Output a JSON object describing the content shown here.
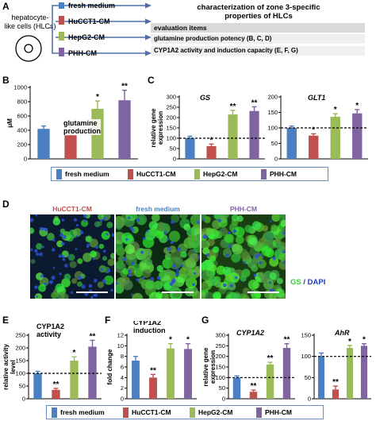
{
  "colors": {
    "fresh": "#4a7fc1",
    "huCCT1": "#c0504d",
    "hepg2": "#9bbb59",
    "phh": "#8064a2",
    "arrow": "#4f6fa8",
    "gs": "#3ccf3c",
    "dapi": "#1f3fb0"
  },
  "legend": {
    "fresh": "fresh medium",
    "huCCT1": "HuCCT1-CM",
    "hepg2": "HepG2-CM",
    "phh": "PHH-CM"
  },
  "panelA": {
    "label": "A",
    "source_line1": "hepatocyte-",
    "source_line2": "like cells (HLCs)",
    "arrows": [
      "fresh medium",
      "HuCCT1-CM",
      "HepG2-CM",
      "PHH-CM"
    ],
    "title_line1": "characterization of zone 3-specific",
    "title_line2": "properties of HLCs",
    "table_header": "evaluation items",
    "table_rows": [
      "glutamine production potency (B, C, D)",
      "CYP1A2 activity and induction capacity (E, F, G)"
    ]
  },
  "panelB": {
    "label": "B",
    "annotation_line1": "glutamine",
    "annotation_line2": "production"
  },
  "panelC": {
    "label": "C"
  },
  "panelD": {
    "label": "D",
    "titles": [
      "HuCCT1-CM",
      "fresh medium",
      "PHH-CM"
    ],
    "stain_gs": "GS",
    "stain_sep": " / ",
    "stain_dapi": "DAPI"
  },
  "panelE": {
    "label": "E"
  },
  "panelF": {
    "label": "F"
  },
  "panelG": {
    "label": "G"
  },
  "chart_data": [
    {
      "id": "B",
      "type": "bar",
      "categories": [
        "fresh medium",
        "HuCCT1-CM",
        "HepG2-CM",
        "PHH-CM"
      ],
      "values": [
        420,
        330,
        700,
        820
      ],
      "errors": [
        40,
        40,
        110,
        140
      ],
      "sig": [
        "",
        "*",
        "*",
        "**"
      ],
      "ylabel": "μM",
      "ylim": [
        0,
        1000
      ],
      "yticks": [
        0,
        200,
        400,
        600,
        800,
        1000
      ],
      "title": "",
      "baseline": null
    },
    {
      "id": "C1",
      "type": "bar",
      "categories": [
        "fresh medium",
        "HuCCT1-CM",
        "HepG2-CM",
        "PHH-CM"
      ],
      "values": [
        100,
        62,
        215,
        232
      ],
      "errors": [
        10,
        10,
        20,
        20
      ],
      "sig": [
        "",
        "*",
        "**",
        "**"
      ],
      "ylabel": "relative gene expression",
      "ylim": [
        0,
        300
      ],
      "yticks": [
        0,
        50,
        100,
        150,
        200,
        250,
        300
      ],
      "title": "GS",
      "baseline": 100
    },
    {
      "id": "C2",
      "type": "bar",
      "categories": [
        "fresh medium",
        "HuCCT1-CM",
        "HepG2-CM",
        "PHH-CM"
      ],
      "values": [
        100,
        75,
        136,
        147
      ],
      "errors": [
        6,
        6,
        10,
        12
      ],
      "sig": [
        "",
        "*",
        "*",
        "*"
      ],
      "ylabel": "",
      "ylim": [
        0,
        200
      ],
      "yticks": [
        0,
        50,
        100,
        150,
        200
      ],
      "title": "GLT1",
      "baseline": 100
    },
    {
      "id": "E",
      "type": "bar",
      "categories": [
        "fresh medium",
        "HuCCT1-CM",
        "HepG2-CM",
        "PHH-CM"
      ],
      "values": [
        100,
        35,
        150,
        205
      ],
      "errors": [
        8,
        6,
        15,
        25
      ],
      "sig": [
        "",
        "**",
        "*",
        "**"
      ],
      "ylabel": "relative activity level",
      "ylim": [
        0,
        250
      ],
      "yticks": [
        0,
        50,
        100,
        150,
        200,
        250
      ],
      "title": "CYP1A2 activity",
      "baseline": 100
    },
    {
      "id": "F",
      "type": "bar",
      "categories": [
        "fresh medium",
        "HuCCT1-CM",
        "HepG2-CM",
        "PHH-CM"
      ],
      "values": [
        7.2,
        4.0,
        9.5,
        9.4
      ],
      "errors": [
        0.8,
        0.6,
        0.9,
        1.0
      ],
      "sig": [
        "",
        "**",
        "*",
        "*"
      ],
      "ylabel": "fold change",
      "ylim": [
        0,
        12
      ],
      "yticks": [
        0,
        2,
        4,
        6,
        8,
        10,
        12
      ],
      "title": "CYP1A2 induction",
      "baseline": null
    },
    {
      "id": "G1",
      "type": "bar",
      "categories": [
        "fresh medium",
        "HuCCT1-CM",
        "HepG2-CM",
        "PHH-CM"
      ],
      "values": [
        100,
        33,
        162,
        240
      ],
      "errors": [
        8,
        8,
        10,
        20
      ],
      "sig": [
        "",
        "**",
        "**",
        "**"
      ],
      "ylabel": "relative gene expression",
      "ylim": [
        0,
        300
      ],
      "yticks": [
        0,
        50,
        100,
        150,
        200,
        250,
        300
      ],
      "title": "CYP1A2",
      "baseline": 100
    },
    {
      "id": "G2",
      "type": "bar",
      "categories": [
        "fresh medium",
        "HuCCT1-CM",
        "HepG2-CM",
        "PHH-CM"
      ],
      "values": [
        100,
        22,
        120,
        125
      ],
      "errors": [
        8,
        8,
        6,
        5
      ],
      "sig": [
        "",
        "**",
        "*",
        "*"
      ],
      "ylabel": "",
      "ylim": [
        0,
        150
      ],
      "yticks": [
        0,
        50,
        100,
        150
      ],
      "title": "AhR",
      "baseline": 100
    }
  ]
}
